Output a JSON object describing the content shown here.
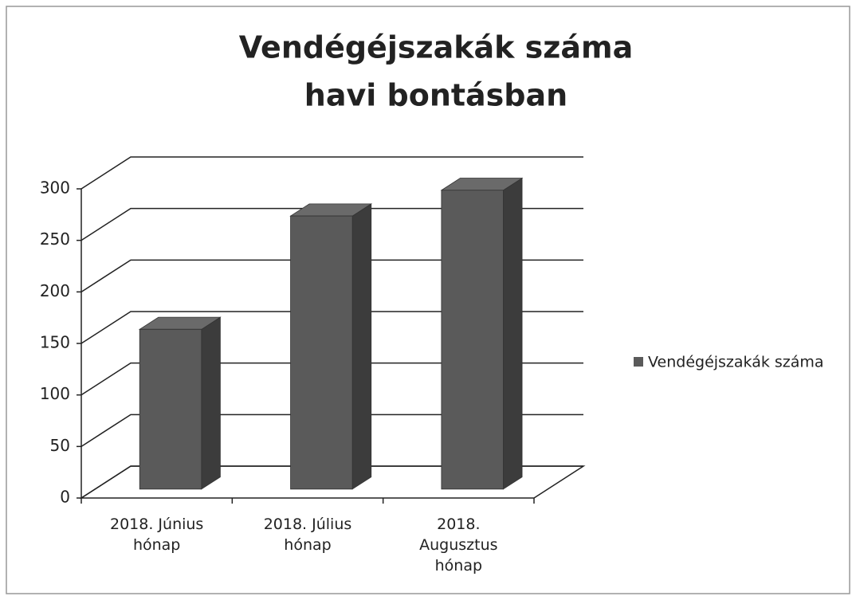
{
  "chart_data": {
    "type": "bar3d",
    "title": [
      "Vendégéjszakák száma",
      "havi bontásban"
    ],
    "categories": [
      "2018. Június hónap",
      "2018. Július hónap",
      "2018. Augusztus hónap"
    ],
    "series": [
      {
        "name": "Vendégéjszakák száma",
        "color": "#5a5a5a",
        "values": [
          155,
          265,
          290
        ]
      }
    ],
    "ylim": [
      0,
      300
    ],
    "yticks": [
      0,
      50,
      100,
      150,
      200,
      250,
      300
    ],
    "grid": true,
    "legend": "right"
  }
}
